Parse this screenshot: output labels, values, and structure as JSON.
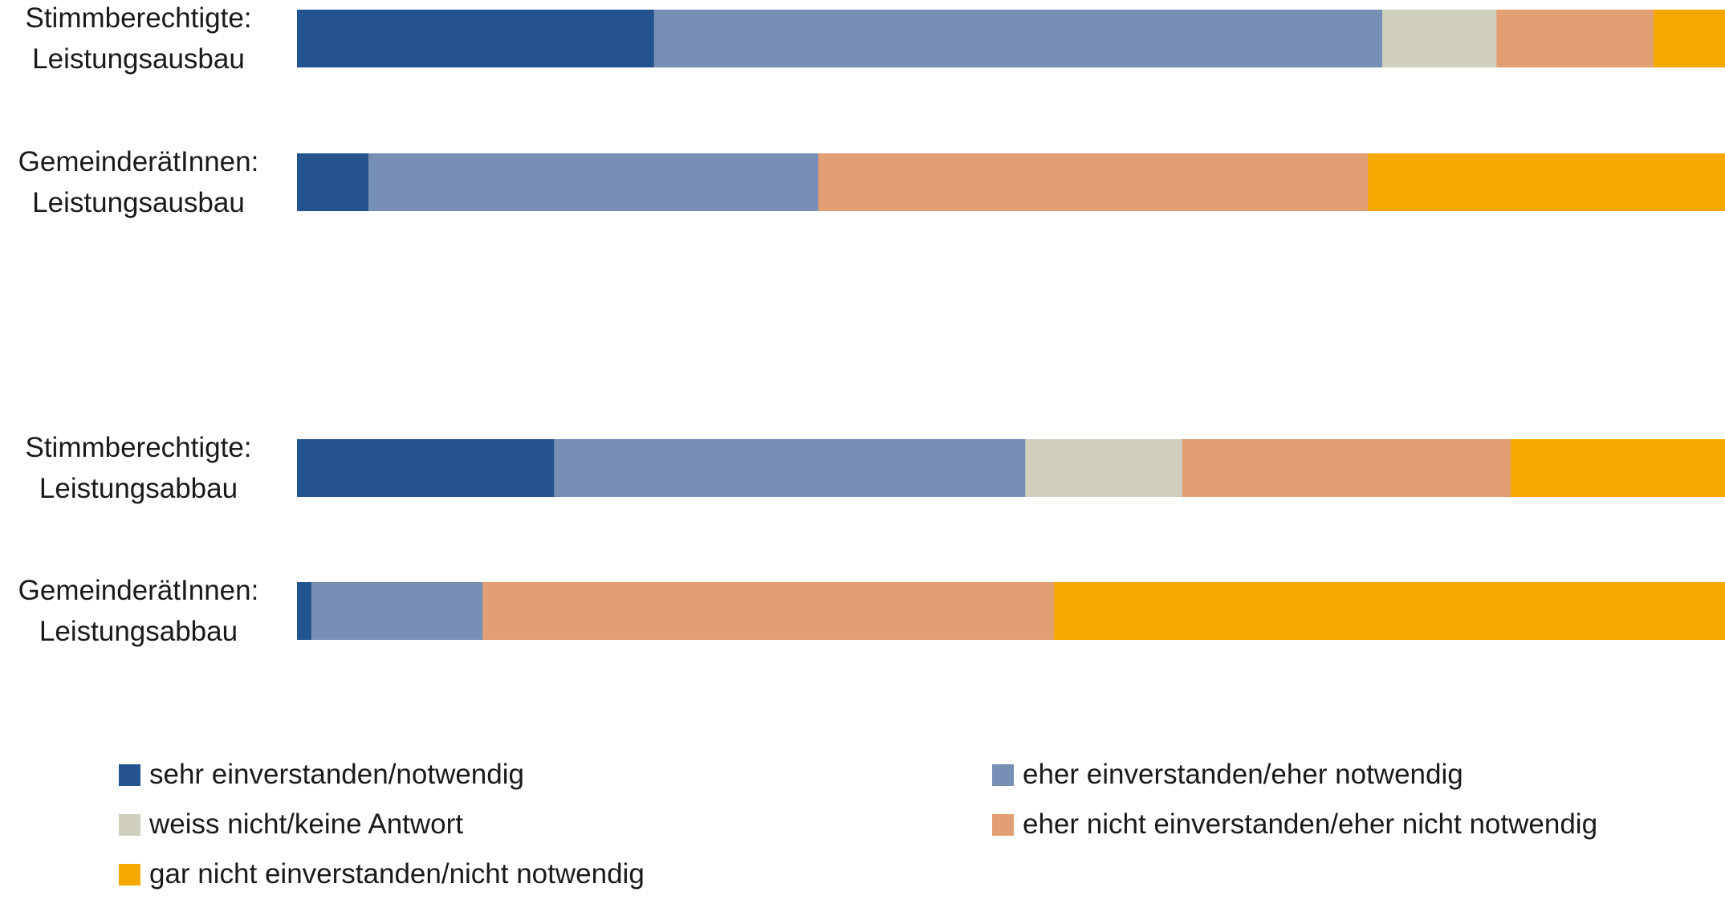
{
  "chart_data": {
    "type": "bar",
    "orientation": "horizontal",
    "stacked": true,
    "title": "",
    "xlabel": "",
    "ylabel": "",
    "xlim": [
      0,
      100
    ],
    "grid": false,
    "legend_position": "bottom",
    "categories": [
      {
        "line1": "Stimmberechtigte:",
        "line2": "Leistungsausbau"
      },
      {
        "line1": "GemeinderätInnen:",
        "line2": "Leistungsausbau"
      },
      {
        "line1": "Stimmberechtigte:",
        "line2": "Leistungsabbau"
      },
      {
        "line1": "GemeinderätInnen:",
        "line2": "Leistungsabbau"
      }
    ],
    "series": [
      {
        "name": "sehr einverstanden/notwendig",
        "color": "#24548f",
        "values": [
          25,
          5,
          18,
          1
        ]
      },
      {
        "name": "eher einverstanden/eher notwendig",
        "color": "#778fb4",
        "values": [
          51,
          31.5,
          33,
          12
        ]
      },
      {
        "name": "weiss nicht/keine Antwort",
        "color": "#d0cfbe",
        "values": [
          8,
          0,
          11,
          0
        ]
      },
      {
        "name": "eher nicht einverstanden/eher nicht notwendig",
        "color": "#e39f74",
        "values": [
          11,
          38.5,
          23,
          40
        ]
      },
      {
        "name": "gar nicht einverstanden/nicht notwendig",
        "color": "#f5a800",
        "values": [
          5,
          25,
          15,
          47
        ]
      }
    ]
  }
}
